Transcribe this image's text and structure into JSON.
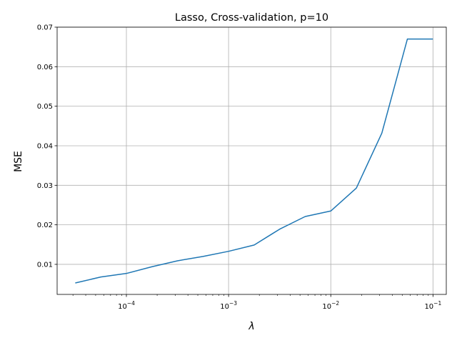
{
  "chart_data": {
    "type": "line",
    "title": "Lasso, Cross-validation, p=10",
    "xlabel": "λ",
    "ylabel": "MSE",
    "xscale": "log",
    "xlim": [
      2.1e-05,
      0.135
    ],
    "ylim": [
      0.0024,
      0.07
    ],
    "grid": true,
    "line_color": "#1f77b4",
    "x_ticks": [
      {
        "value": 0.0001,
        "base": "10",
        "exp": "−4"
      },
      {
        "value": 0.001,
        "base": "10",
        "exp": "−3"
      },
      {
        "value": 0.01,
        "base": "10",
        "exp": "−2"
      },
      {
        "value": 0.1,
        "base": "10",
        "exp": "−1"
      }
    ],
    "y_ticks": [
      {
        "value": 0.01,
        "label": "0.01"
      },
      {
        "value": 0.02,
        "label": "0.02"
      },
      {
        "value": 0.03,
        "label": "0.03"
      },
      {
        "value": 0.04,
        "label": "0.04"
      },
      {
        "value": 0.05,
        "label": "0.05"
      },
      {
        "value": 0.06,
        "label": "0.06"
      },
      {
        "value": 0.07,
        "label": "0.07"
      }
    ],
    "series": [
      {
        "x": [
          3.16e-05,
          5.62e-05,
          0.0001,
          0.000178,
          0.000316,
          0.000562,
          0.001,
          0.00178,
          0.00316,
          0.00562,
          0.01,
          0.0178,
          0.0316,
          0.0562,
          0.1
        ],
        "values": [
          0.0053,
          0.0068,
          0.0077,
          0.0094,
          0.0109,
          0.012,
          0.0133,
          0.0149,
          0.0189,
          0.0221,
          0.0235,
          0.0293,
          0.0432,
          0.067,
          0.067
        ]
      }
    ]
  }
}
